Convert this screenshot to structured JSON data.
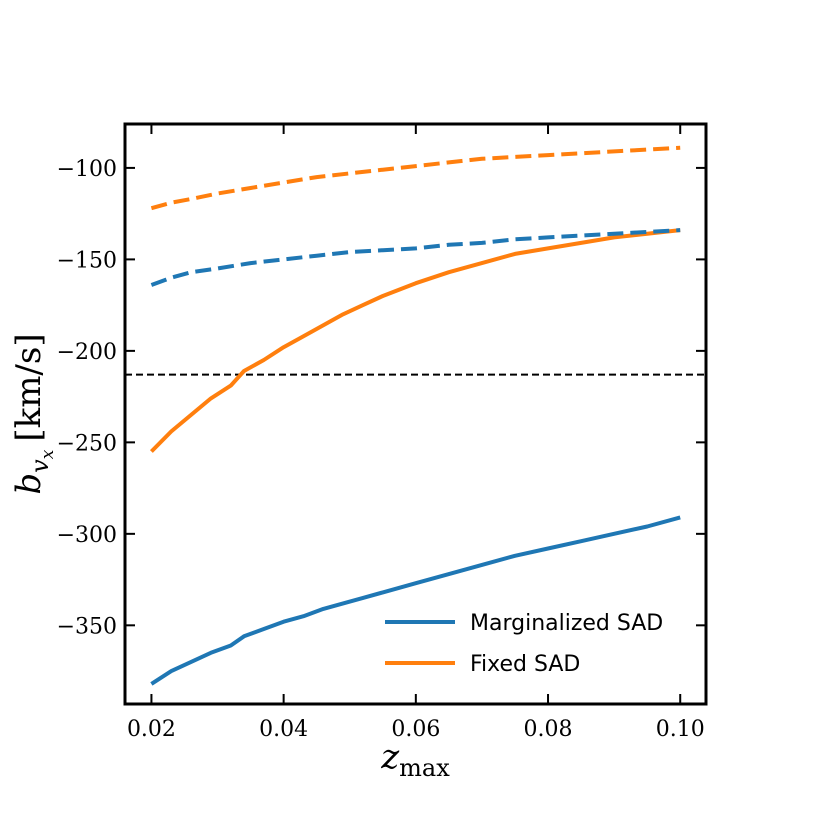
{
  "chart_data": {
    "type": "line",
    "title": "",
    "xlabel": {
      "base": "z",
      "sub": "max"
    },
    "ylabel": {
      "base": "b",
      "sub": "v",
      "subsub": "x",
      "unit": "[km/s]"
    },
    "xlim": [
      0.016,
      0.1039
    ],
    "ylim": [
      -393,
      -76
    ],
    "xticks": [
      0.02,
      0.04,
      0.06,
      0.08,
      0.1
    ],
    "xtick_labels": [
      "0.02",
      "0.04",
      "0.06",
      "0.08",
      "0.10"
    ],
    "yticks": [
      -100,
      -150,
      -200,
      -250,
      -300,
      -350
    ],
    "ytick_labels": [
      "−100",
      "−150",
      "−200",
      "−250",
      "−300",
      "−350"
    ],
    "reference_line": {
      "y": -213,
      "style": "dashed",
      "color": "#000000"
    },
    "legend_position": "lower-right",
    "series": [
      {
        "name": "Marginalized SAD",
        "in_legend": true,
        "color": "#1f77b4",
        "style": "solid",
        "x": [
          0.02,
          0.023,
          0.026,
          0.029,
          0.032,
          0.034,
          0.037,
          0.04,
          0.043,
          0.046,
          0.049,
          0.052,
          0.055,
          0.06,
          0.065,
          0.07,
          0.075,
          0.08,
          0.085,
          0.09,
          0.095,
          0.1
        ],
        "y": [
          -382,
          -375,
          -370,
          -365,
          -361,
          -356,
          -352,
          -348,
          -345,
          -341,
          -338,
          -335,
          -332,
          -327,
          -322,
          -317,
          -312,
          -308,
          -304,
          -300,
          -296,
          -291
        ]
      },
      {
        "name": "Fixed SAD",
        "in_legend": true,
        "color": "#ff7f0e",
        "style": "solid",
        "x": [
          0.02,
          0.023,
          0.026,
          0.029,
          0.032,
          0.034,
          0.037,
          0.04,
          0.043,
          0.046,
          0.049,
          0.052,
          0.055,
          0.06,
          0.065,
          0.07,
          0.075,
          0.08,
          0.085,
          0.09,
          0.095,
          0.1
        ],
        "y": [
          -255,
          -244,
          -235,
          -226,
          -219,
          -211,
          -205,
          -198,
          -192,
          -186,
          -180,
          -175,
          -170,
          -163,
          -157,
          -152,
          -147,
          -144,
          -141,
          -138,
          -136,
          -134
        ]
      },
      {
        "name": "Marginalized SAD (dashed)",
        "in_legend": false,
        "color": "#1f77b4",
        "style": "dashed",
        "x": [
          0.02,
          0.023,
          0.026,
          0.03,
          0.035,
          0.04,
          0.045,
          0.05,
          0.055,
          0.06,
          0.065,
          0.07,
          0.075,
          0.08,
          0.085,
          0.09,
          0.095,
          0.1
        ],
        "y": [
          -164,
          -160,
          -157,
          -155,
          -152,
          -150,
          -148,
          -146,
          -145,
          -144,
          -142,
          -141,
          -139,
          -138,
          -137,
          -136,
          -135,
          -134
        ]
      },
      {
        "name": "Fixed SAD (dashed)",
        "in_legend": false,
        "color": "#ff7f0e",
        "style": "dashed",
        "x": [
          0.02,
          0.023,
          0.026,
          0.03,
          0.035,
          0.04,
          0.045,
          0.05,
          0.055,
          0.06,
          0.065,
          0.07,
          0.075,
          0.08,
          0.085,
          0.09,
          0.095,
          0.1
        ],
        "y": [
          -122,
          -119,
          -117,
          -114,
          -111,
          -108,
          -105,
          -103,
          -101,
          -99,
          -97,
          -95,
          -94,
          -93,
          -92,
          -91,
          -90,
          -89
        ]
      }
    ]
  }
}
